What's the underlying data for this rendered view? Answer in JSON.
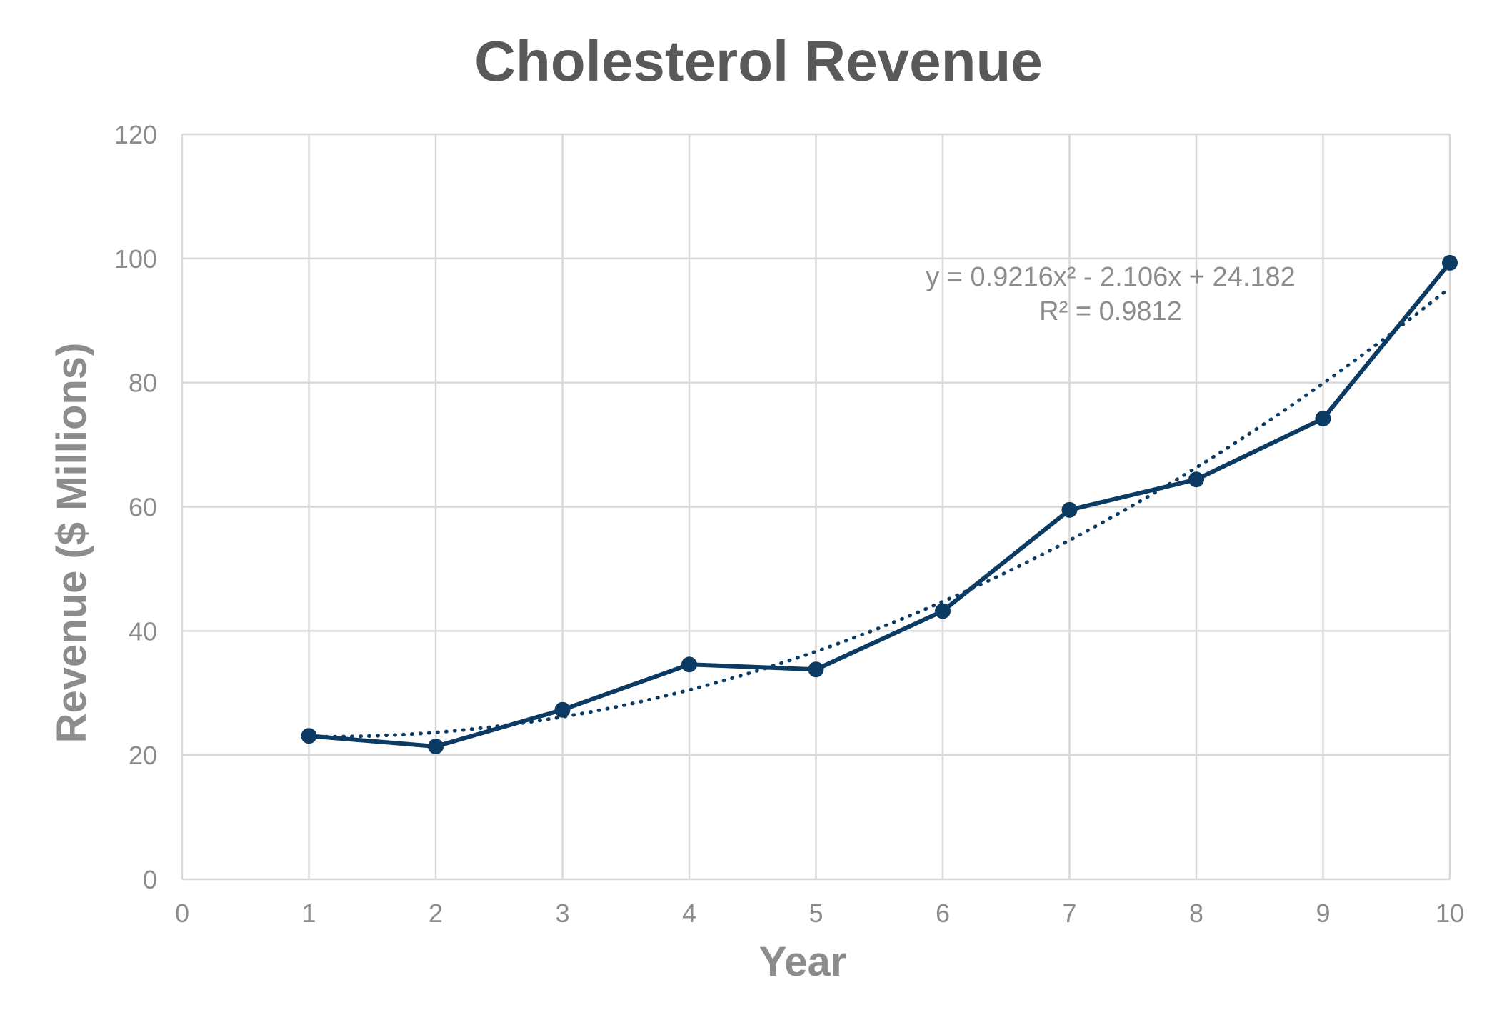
{
  "chart_data": {
    "type": "scatter",
    "title": "Cholesterol Revenue",
    "xlabel": "Year",
    "ylabel": "Revenue ($ Millions)",
    "xlim": [
      0,
      10
    ],
    "ylim": [
      0,
      120
    ],
    "x_ticks": [
      "0",
      "1",
      "2",
      "3",
      "4",
      "5",
      "6",
      "7",
      "8",
      "9",
      "10"
    ],
    "y_ticks": [
      "0",
      "20",
      "40",
      "60",
      "80",
      "100",
      "120"
    ],
    "grid": true,
    "legend": "none",
    "series": [
      {
        "x": [
          1,
          2,
          3,
          4,
          5,
          6,
          7,
          8,
          9,
          10
        ],
        "values": [
          23.1,
          21.4,
          27.3,
          34.6,
          33.8,
          43.2,
          59.5,
          64.4,
          74.2,
          99.3
        ],
        "color": "#0b3a63",
        "markers": true,
        "line": "solid"
      }
    ],
    "trendline": {
      "type": "polynomial-2",
      "coefficients": [
        0.9216,
        -2.106,
        24.182
      ],
      "style": "dotted",
      "color": "#0b3a63"
    },
    "annotations": [
      {
        "text": "y = 0.9216x² - 2.106x + 24.182"
      },
      {
        "text": "R² = 0.9812"
      }
    ]
  }
}
